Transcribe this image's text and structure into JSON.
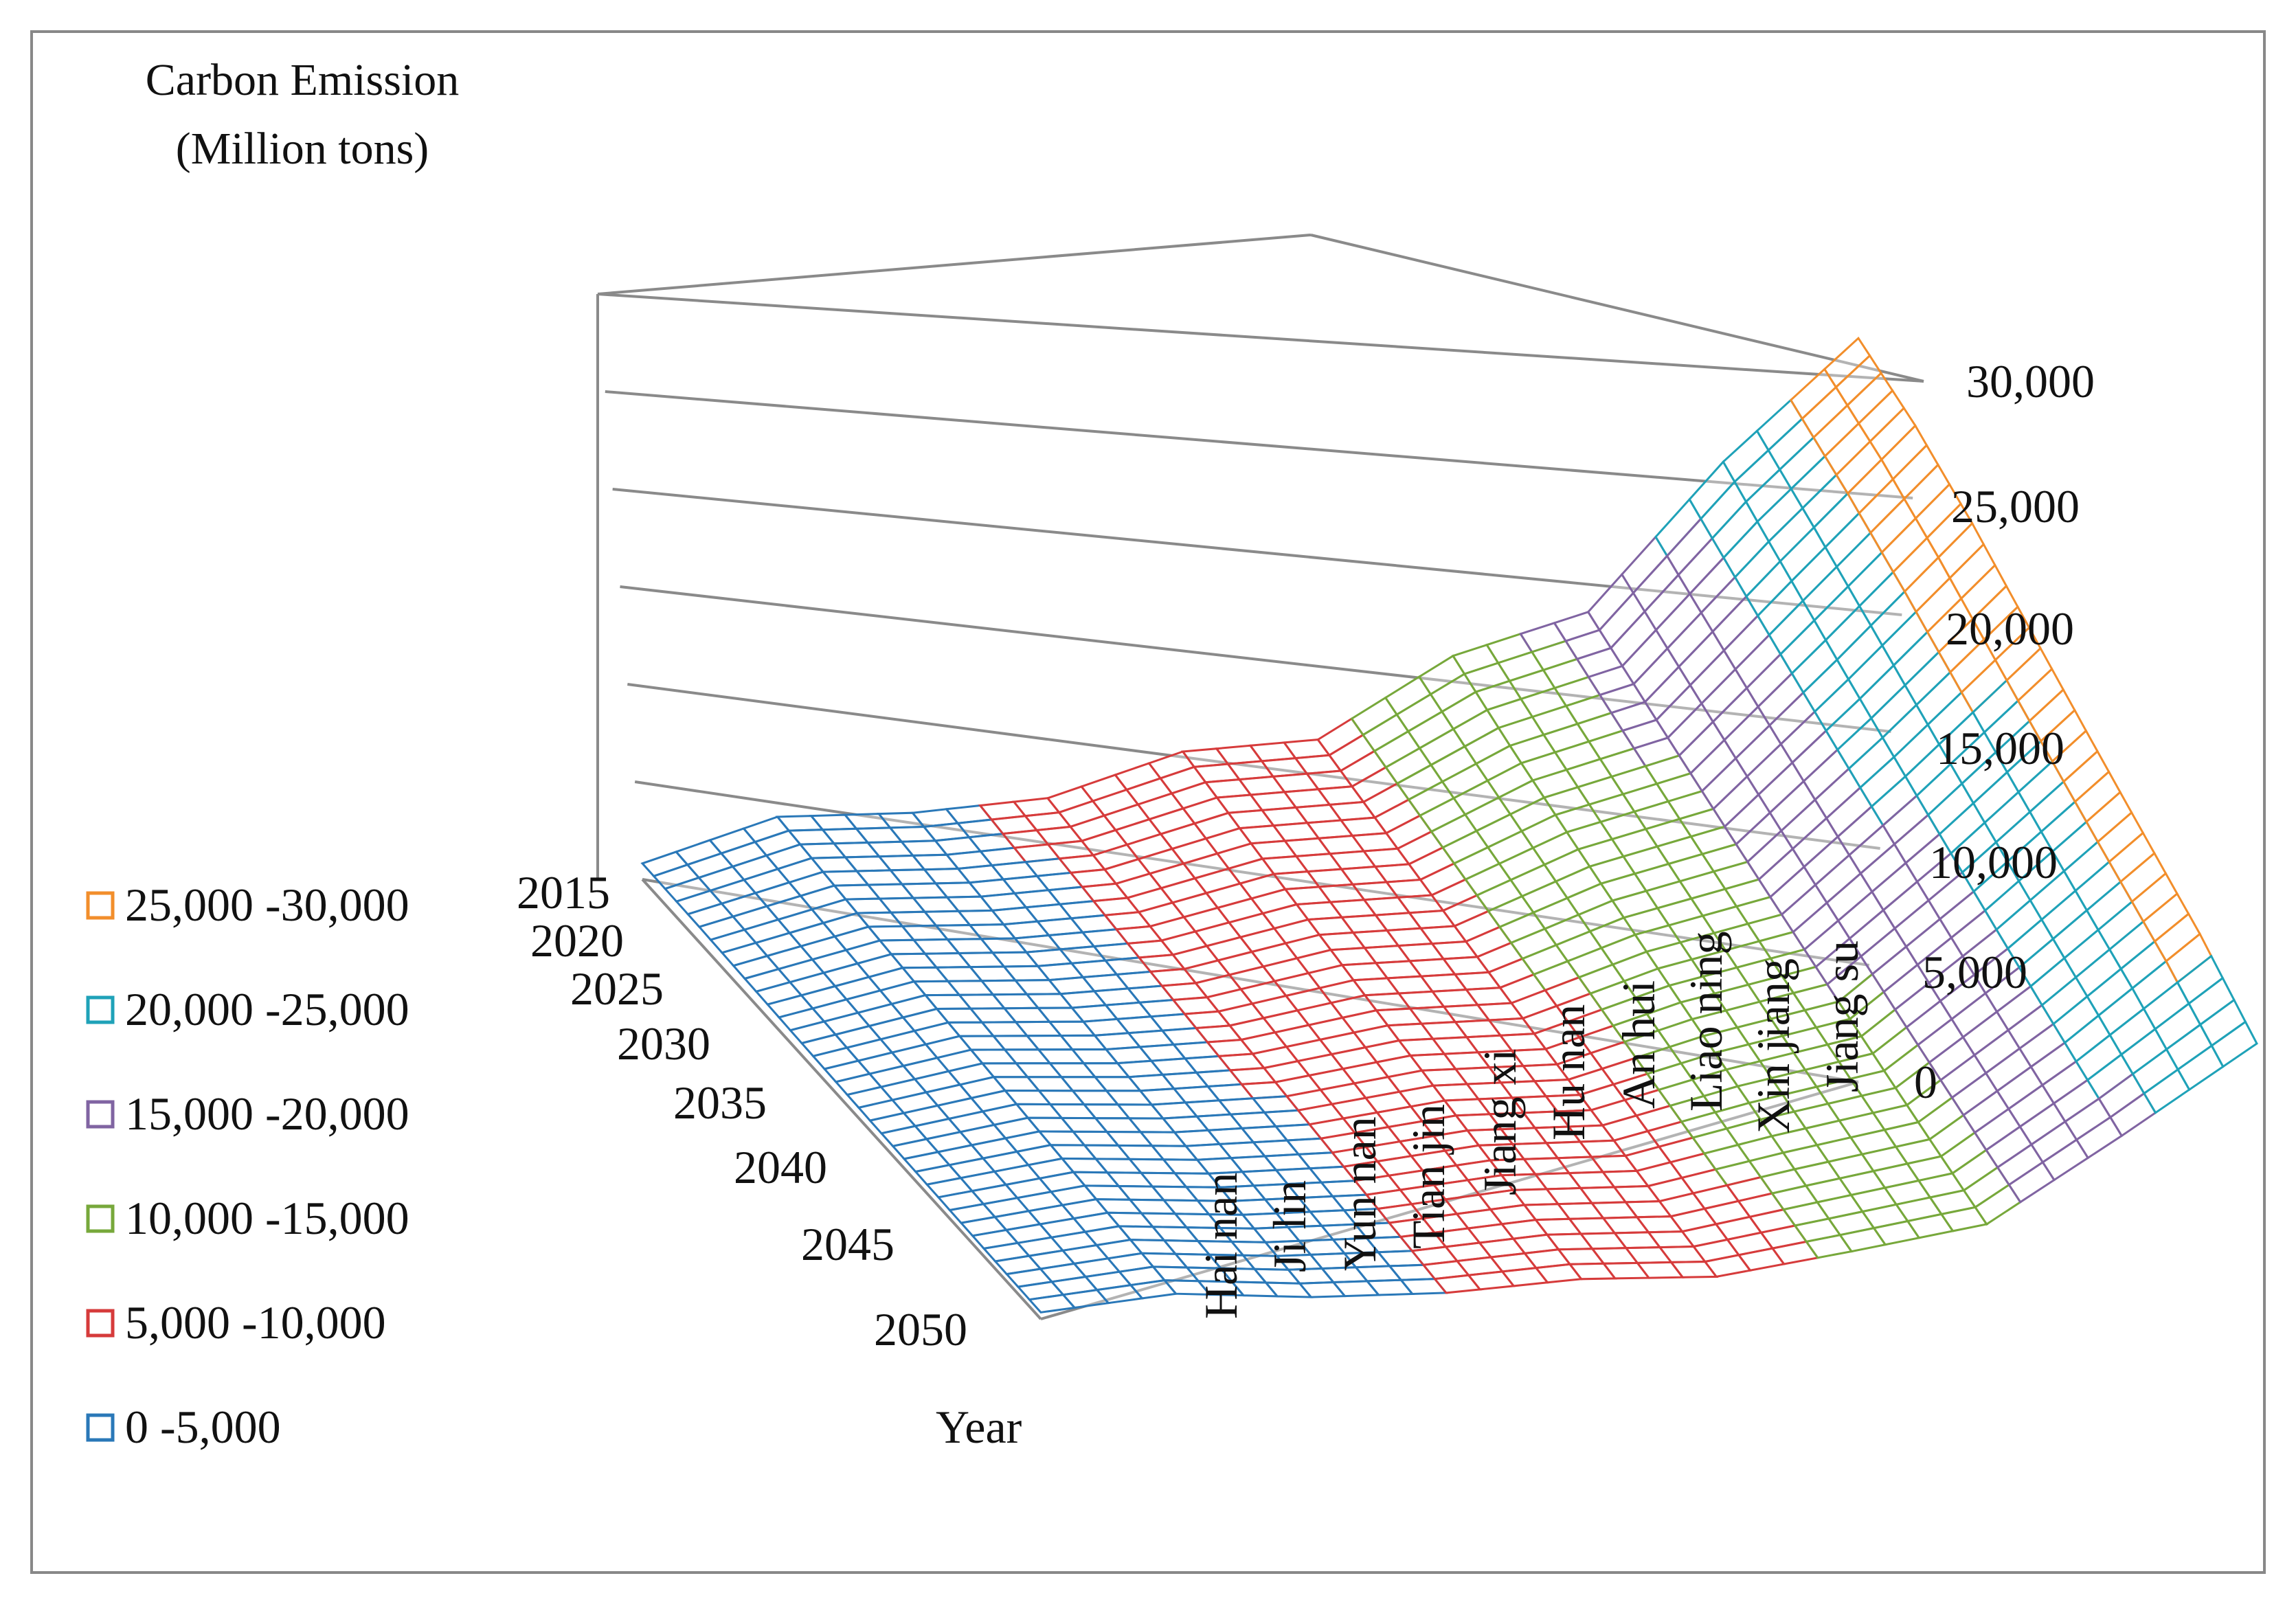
{
  "chart_data": {
    "type": "surface",
    "title": "",
    "zlabel_line1": "Carbon Emission",
    "zlabel_line2": "(Million tons)",
    "xlabel": "Year",
    "years": [
      "2015",
      "2020",
      "2025",
      "2030",
      "2035",
      "2040",
      "2045",
      "2050"
    ],
    "provinces": [
      "Hai nan",
      "Ji lin",
      "Yun nan",
      "Tian jin",
      "Jiang xi",
      "Hu nan",
      "An hui",
      "Liao ning",
      "Xin  jiang",
      "Jiang su"
    ],
    "z_ticks": [
      "0",
      "5,000",
      "10,000",
      "15,000",
      "20,000",
      "25,000",
      "30,000"
    ],
    "zlim": [
      0,
      30000
    ],
    "legend": [
      {
        "label": "25,000 -30,000",
        "color": "#F28E2B",
        "min": 25000,
        "max": 30000
      },
      {
        "label": "20,000 -25,000",
        "color": "#1FA2B8",
        "min": 20000,
        "max": 25000
      },
      {
        "label": "15,000 -20,000",
        "color": "#8064A2",
        "min": 15000,
        "max": 20000
      },
      {
        "label": "10,000 -15,000",
        "color": "#77A83B",
        "min": 10000,
        "max": 15000
      },
      {
        "label": "5,000 -10,000",
        "color": "#D63B3B",
        "min": 5000,
        "max": 10000
      },
      {
        "label": "0 -5,000",
        "color": "#2A78B8",
        "min": 0,
        "max": 5000
      }
    ],
    "series_by_province": [
      {
        "name": "Hai nan",
        "values": [
          600,
          600,
          550,
          500,
          450,
          420,
          380,
          350
        ]
      },
      {
        "name": "Ji lin",
        "values": [
          3200,
          3100,
          3000,
          2900,
          2800,
          2700,
          2600,
          2500
        ]
      },
      {
        "name": "Yun nan",
        "values": [
          4200,
          4100,
          4000,
          3900,
          3800,
          3700,
          3600,
          3500
        ]
      },
      {
        "name": "Tian jin",
        "values": [
          5600,
          5500,
          5400,
          5300,
          5200,
          5100,
          5000,
          4900
        ]
      },
      {
        "name": "Jiang xi",
        "values": [
          8200,
          8000,
          7800,
          7600,
          7400,
          7200,
          7000,
          6800
        ]
      },
      {
        "name": "Hu nan",
        "values": [
          9500,
          9300,
          9100,
          8900,
          8700,
          8500,
          8300,
          8100
        ]
      },
      {
        "name": "An hui",
        "values": [
          13500,
          13000,
          12600,
          12200,
          11800,
          11400,
          11000,
          10600
        ]
      },
      {
        "name": "Liao ning",
        "values": [
          16000,
          15600,
          15200,
          14800,
          14400,
          14000,
          13600,
          13200
        ]
      },
      {
        "name": "Xin  jiang",
        "values": [
          22500,
          22000,
          21500,
          21000,
          20500,
          20000,
          19500,
          19000
        ]
      },
      {
        "name": "Jiang su",
        "values": [
          28000,
          28200,
          28000,
          27500,
          27000,
          26500,
          26000,
          25000
        ]
      }
    ]
  }
}
